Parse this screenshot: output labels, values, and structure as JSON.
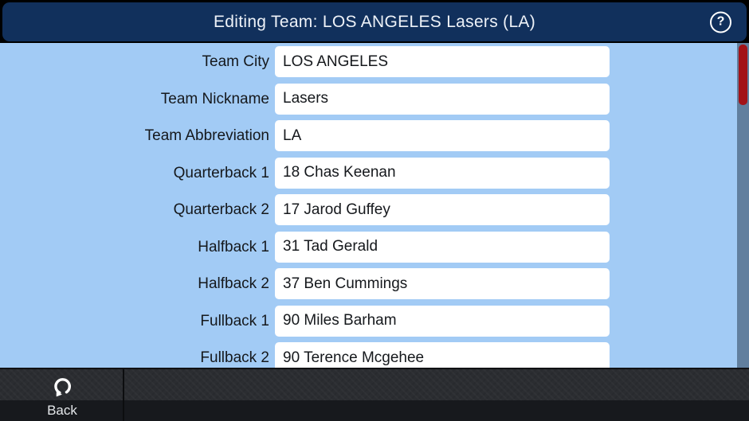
{
  "header": {
    "title": "Editing Team: LOS ANGELES Lasers (LA)",
    "help_icon": "question-mark-circle",
    "help_glyph": "?"
  },
  "form": {
    "rows": [
      {
        "label": "Team City",
        "value": "LOS ANGELES"
      },
      {
        "label": "Team Nickname",
        "value": "Lasers"
      },
      {
        "label": "Team Abbreviation",
        "value": "LA"
      },
      {
        "label": "Quarterback 1",
        "value": "18 Chas Keenan"
      },
      {
        "label": "Quarterback 2",
        "value": "17 Jarod Guffey"
      },
      {
        "label": "Halfback 1",
        "value": "31 Tad Gerald"
      },
      {
        "label": "Halfback 2",
        "value": "37 Ben Cummings"
      },
      {
        "label": "Fullback 1",
        "value": "90 Miles Barham"
      },
      {
        "label": "Fullback 2",
        "value": "90 Terence Mcgehee"
      }
    ]
  },
  "footer": {
    "back_label": "Back",
    "back_icon": "return-curved-arrow"
  },
  "scrollbar": {
    "orientation": "vertical",
    "thumb_position": "top"
  },
  "colors": {
    "header_bg": "#11305c",
    "header_frame": "#000000",
    "body_bg": "#a2cbf5",
    "field_bg": "#ffffff",
    "text_dark": "#15181c",
    "text_light": "#eef2f8",
    "scrollbar_track": "#617f9e",
    "scrollbar_thumb": "#a31318",
    "footer_bg": "#2b2d31",
    "footer_strip_bg": "#17191d"
  }
}
